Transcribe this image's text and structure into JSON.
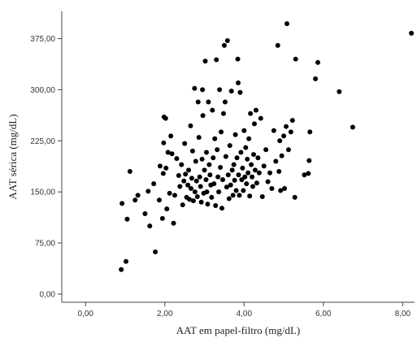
{
  "chart_data": {
    "type": "scatter",
    "title": "",
    "xlabel": "AAT em papel-filtro (mg/dL)",
    "ylabel": "AAT sérica (mg/dL)",
    "xlim": [
      -0.6,
      8.3
    ],
    "ylim": [
      -12,
      415
    ],
    "xticks": [
      0,
      2,
      4,
      6,
      8
    ],
    "xtick_labels": [
      "0,00",
      "2,00",
      "4,00",
      "6,00",
      "8,00"
    ],
    "yticks": [
      0,
      75,
      150,
      225,
      300,
      375
    ],
    "ytick_labels": [
      "0,00",
      "75,00",
      "150,00",
      "225,00",
      "300,00",
      "375,00"
    ],
    "grid": false,
    "legend": "none",
    "marker_color": "#000000",
    "series": [
      {
        "points": [
          [
            0.9,
            36
          ],
          [
            0.92,
            133
          ],
          [
            1.02,
            48
          ],
          [
            1.05,
            110
          ],
          [
            1.12,
            180
          ],
          [
            1.25,
            138
          ],
          [
            1.32,
            145
          ],
          [
            1.5,
            118
          ],
          [
            1.58,
            151
          ],
          [
            1.62,
            100
          ],
          [
            1.72,
            162
          ],
          [
            1.76,
            62
          ],
          [
            1.86,
            138
          ],
          [
            1.88,
            188
          ],
          [
            1.94,
            111
          ],
          [
            1.96,
            177
          ],
          [
            1.97,
            222
          ],
          [
            1.98,
            260
          ],
          [
            2.02,
            258
          ],
          [
            2.03,
            185
          ],
          [
            2.05,
            125
          ],
          [
            2.08,
            208
          ],
          [
            2.12,
            148
          ],
          [
            2.15,
            232
          ],
          [
            2.18,
            206
          ],
          [
            2.22,
            104
          ],
          [
            2.25,
            145
          ],
          [
            2.3,
            199
          ],
          [
            2.35,
            174
          ],
          [
            2.38,
            158
          ],
          [
            2.42,
            190
          ],
          [
            2.45,
            131
          ],
          [
            2.48,
            166
          ],
          [
            2.5,
            221
          ],
          [
            2.52,
            176
          ],
          [
            2.55,
            142
          ],
          [
            2.58,
            160
          ],
          [
            2.6,
            182
          ],
          [
            2.62,
            139
          ],
          [
            2.65,
            247
          ],
          [
            2.66,
            155
          ],
          [
            2.68,
            170
          ],
          [
            2.7,
            210
          ],
          [
            2.72,
            137
          ],
          [
            2.75,
            302
          ],
          [
            2.76,
            150
          ],
          [
            2.78,
            195
          ],
          [
            2.8,
            166
          ],
          [
            2.82,
            143
          ],
          [
            2.84,
            282
          ],
          [
            2.86,
            230
          ],
          [
            2.88,
            172
          ],
          [
            2.9,
            158
          ],
          [
            2.92,
            135
          ],
          [
            2.94,
            198
          ],
          [
            2.95,
            300
          ],
          [
            2.96,
            262
          ],
          [
            2.98,
            148
          ],
          [
            3.0,
            182
          ],
          [
            3.02,
            342
          ],
          [
            3.04,
            168
          ],
          [
            3.05,
            208
          ],
          [
            3.06,
            150
          ],
          [
            3.08,
            132
          ],
          [
            3.1,
            282
          ],
          [
            3.12,
            190
          ],
          [
            3.14,
            175
          ],
          [
            3.16,
            160
          ],
          [
            3.18,
            142
          ],
          [
            3.2,
            270
          ],
          [
            3.22,
            200
          ],
          [
            3.24,
            162
          ],
          [
            3.26,
            228
          ],
          [
            3.28,
            130
          ],
          [
            3.3,
            344
          ],
          [
            3.32,
            212
          ],
          [
            3.34,
            172
          ],
          [
            3.36,
            150
          ],
          [
            3.38,
            300
          ],
          [
            3.4,
            186
          ],
          [
            3.42,
            238
          ],
          [
            3.44,
            126
          ],
          [
            3.46,
            168
          ],
          [
            3.48,
            265
          ],
          [
            3.5,
            365
          ],
          [
            3.52,
            282
          ],
          [
            3.54,
            202
          ],
          [
            3.56,
            157
          ],
          [
            3.58,
            372
          ],
          [
            3.6,
            175
          ],
          [
            3.62,
            140
          ],
          [
            3.64,
            218
          ],
          [
            3.66,
            160
          ],
          [
            3.68,
            298
          ],
          [
            3.7,
            182
          ],
          [
            3.72,
            145
          ],
          [
            3.74,
            190
          ],
          [
            3.76,
            167
          ],
          [
            3.78,
            234
          ],
          [
            3.8,
            152
          ],
          [
            3.82,
            200
          ],
          [
            3.84,
            345
          ],
          [
            3.85,
            310
          ],
          [
            3.86,
            175
          ],
          [
            3.88,
            145
          ],
          [
            3.9,
            296
          ],
          [
            3.92,
            208
          ],
          [
            3.94,
            168
          ],
          [
            3.96,
            185
          ],
          [
            3.98,
            152
          ],
          [
            4.0,
            240
          ],
          [
            4.02,
            172
          ],
          [
            4.04,
            215
          ],
          [
            4.06,
            162
          ],
          [
            4.08,
            198
          ],
          [
            4.1,
            178
          ],
          [
            4.12,
            228
          ],
          [
            4.14,
            144
          ],
          [
            4.16,
            265
          ],
          [
            4.18,
            190
          ],
          [
            4.2,
            172
          ],
          [
            4.22,
            158
          ],
          [
            4.24,
            205
          ],
          [
            4.26,
            250
          ],
          [
            4.28,
            182
          ],
          [
            4.3,
            270
          ],
          [
            4.32,
            163
          ],
          [
            4.35,
            200
          ],
          [
            4.38,
            178
          ],
          [
            4.42,
            258
          ],
          [
            4.46,
            143
          ],
          [
            4.5,
            188
          ],
          [
            4.55,
            212
          ],
          [
            4.6,
            165
          ],
          [
            4.65,
            178
          ],
          [
            4.7,
            155
          ],
          [
            4.75,
            240
          ],
          [
            4.8,
            195
          ],
          [
            4.85,
            365
          ],
          [
            4.88,
            180
          ],
          [
            4.9,
            225
          ],
          [
            4.92,
            152
          ],
          [
            4.95,
            203
          ],
          [
            5.0,
            232
          ],
          [
            5.02,
            155
          ],
          [
            5.06,
            246
          ],
          [
            5.08,
            397
          ],
          [
            5.12,
            212
          ],
          [
            5.18,
            238
          ],
          [
            5.22,
            255
          ],
          [
            5.28,
            142
          ],
          [
            5.3,
            345
          ],
          [
            5.52,
            175
          ],
          [
            5.62,
            177
          ],
          [
            5.64,
            196
          ],
          [
            5.66,
            238
          ],
          [
            5.8,
            316
          ],
          [
            5.86,
            340
          ],
          [
            6.4,
            297
          ],
          [
            6.74,
            245
          ],
          [
            8.22,
            383
          ]
        ]
      }
    ]
  }
}
